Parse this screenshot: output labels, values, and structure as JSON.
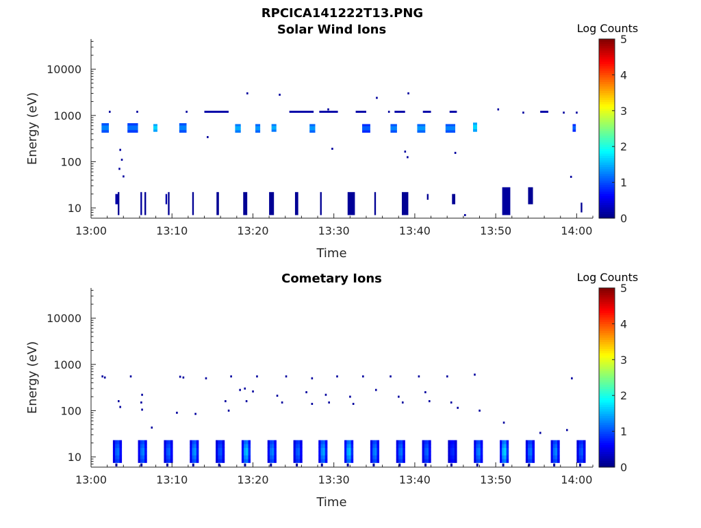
{
  "figure": {
    "title": "RPCICA141222T13.PNG"
  },
  "chart_data": [
    {
      "type": "heatmap",
      "title": "Solar Wind Ions",
      "xlabel": "Time",
      "ylabel": "Energy (eV)",
      "x_ticks": [
        "13:00",
        "13:10",
        "13:20",
        "13:30",
        "13:40",
        "13:50",
        "14:00"
      ],
      "x_range_minutes": [
        0,
        62
      ],
      "y_scale": "log",
      "y_ticks": [
        "10",
        "100",
        "1000",
        "10000"
      ],
      "y_range": [
        6,
        45000
      ],
      "grid": false,
      "colorbar": {
        "label": "Log Counts",
        "ticks": [
          "0",
          "1",
          "2",
          "3",
          "4",
          "5"
        ],
        "range": [
          0,
          5
        ],
        "colormap": "jet"
      },
      "patches": [
        {
          "t": [
            1.3,
            2.2
          ],
          "e": [
            430,
            680
          ],
          "v": 1.4
        },
        {
          "t": [
            4.5,
            5.8
          ],
          "e": [
            430,
            680
          ],
          "v": 1.3
        },
        {
          "t": [
            7.7,
            8.2
          ],
          "e": [
            450,
            650
          ],
          "v": 1.8
        },
        {
          "t": [
            10.9,
            11.8
          ],
          "e": [
            430,
            680
          ],
          "v": 1.4
        },
        {
          "t": [
            17.8,
            18.5
          ],
          "e": [
            430,
            650
          ],
          "v": 1.6
        },
        {
          "t": [
            20.3,
            20.9
          ],
          "e": [
            430,
            650
          ],
          "v": 1.5
        },
        {
          "t": [
            22.3,
            22.9
          ],
          "e": [
            450,
            650
          ],
          "v": 1.6
        },
        {
          "t": [
            27.0,
            27.7
          ],
          "e": [
            430,
            650
          ],
          "v": 1.5
        },
        {
          "t": [
            33.5,
            34.5
          ],
          "e": [
            430,
            650
          ],
          "v": 1.2
        },
        {
          "t": [
            37.0,
            37.8
          ],
          "e": [
            430,
            650
          ],
          "v": 1.4
        },
        {
          "t": [
            40.3,
            41.3
          ],
          "e": [
            430,
            650
          ],
          "v": 1.5
        },
        {
          "t": [
            43.8,
            45.0
          ],
          "e": [
            430,
            650
          ],
          "v": 1.4
        },
        {
          "t": [
            47.2,
            47.7
          ],
          "e": [
            450,
            700
          ],
          "v": 1.8
        },
        {
          "t": [
            59.5,
            59.9
          ],
          "e": [
            450,
            650
          ],
          "v": 1.2
        },
        {
          "t": [
            3.0,
            3.3
          ],
          "e": [
            12,
            20
          ],
          "v": 0.2
        },
        {
          "t": [
            3.3,
            3.5
          ],
          "e": [
            7,
            22
          ],
          "v": 0.1
        },
        {
          "t": [
            6.1,
            6.3
          ],
          "e": [
            7,
            22
          ],
          "v": 0.15
        },
        {
          "t": [
            6.6,
            6.8
          ],
          "e": [
            7,
            22
          ],
          "v": 0.1
        },
        {
          "t": [
            9.2,
            9.4
          ],
          "e": [
            12,
            20
          ],
          "v": 0.2
        },
        {
          "t": [
            9.5,
            9.7
          ],
          "e": [
            7,
            22
          ],
          "v": 0.1
        },
        {
          "t": [
            12.5,
            12.7
          ],
          "e": [
            7,
            22
          ],
          "v": 0.1
        },
        {
          "t": [
            15.5,
            15.8
          ],
          "e": [
            7,
            22
          ],
          "v": 0.1
        },
        {
          "t": [
            18.8,
            19.3
          ],
          "e": [
            7,
            22
          ],
          "v": 0.1
        },
        {
          "t": [
            22.0,
            22.6
          ],
          "e": [
            7,
            22
          ],
          "v": 0.1
        },
        {
          "t": [
            25.2,
            25.6
          ],
          "e": [
            7,
            22
          ],
          "v": 0.1
        },
        {
          "t": [
            28.3,
            28.5
          ],
          "e": [
            7,
            22
          ],
          "v": 0.1
        },
        {
          "t": [
            31.7,
            32.6
          ],
          "e": [
            7,
            22
          ],
          "v": 0.12
        },
        {
          "t": [
            35.0,
            35.2
          ],
          "e": [
            7,
            22
          ],
          "v": 0.1
        },
        {
          "t": [
            38.4,
            39.2
          ],
          "e": [
            7,
            22
          ],
          "v": 0.1
        },
        {
          "t": [
            41.5,
            41.7
          ],
          "e": [
            15,
            20
          ],
          "v": 0.1
        },
        {
          "t": [
            44.6,
            45.0
          ],
          "e": [
            12,
            20
          ],
          "v": 0.1
        },
        {
          "t": [
            50.8,
            51.8
          ],
          "e": [
            7,
            28
          ],
          "v": 0.15
        },
        {
          "t": [
            54.0,
            54.6
          ],
          "e": [
            12,
            28
          ],
          "v": 0.1
        },
        {
          "t": [
            60.5,
            60.7
          ],
          "e": [
            8,
            13
          ],
          "v": 0.1
        }
      ],
      "dots": [
        [
          2.3,
          1200
        ],
        [
          5.7,
          1200
        ],
        [
          11.8,
          1200
        ],
        [
          19.3,
          3000
        ],
        [
          23.3,
          2800
        ],
        [
          35.3,
          2400
        ],
        [
          39.2,
          3000
        ],
        [
          29.3,
          1350
        ],
        [
          36.8,
          1200
        ],
        [
          50.3,
          1350
        ],
        [
          53.4,
          1150
        ],
        [
          58.4,
          1150
        ],
        [
          60.0,
          1150
        ],
        [
          3.6,
          180
        ],
        [
          3.8,
          110
        ],
        [
          4.0,
          48
        ],
        [
          14.4,
          340
        ],
        [
          29.8,
          190
        ],
        [
          38.8,
          165
        ],
        [
          39.1,
          125
        ],
        [
          45.0,
          155
        ],
        [
          59.3,
          47
        ],
        [
          46.2,
          7
        ],
        [
          3.5,
          70
        ]
      ],
      "pixel_strings": [
        [
          [
            14.0,
            17.0
          ],
          1200
        ],
        [
          [
            24.5,
            27.5
          ],
          1200
        ],
        [
          [
            28.2,
            30.5
          ],
          1200
        ],
        [
          [
            32.7,
            34.0
          ],
          1200
        ],
        [
          [
            37.5,
            38.8
          ],
          1200
        ],
        [
          [
            41.0,
            42.0
          ],
          1200
        ],
        [
          [
            44.3,
            45.2
          ],
          1200
        ],
        [
          [
            55.5,
            56.5
          ],
          1200
        ]
      ]
    },
    {
      "type": "heatmap",
      "title": "Cometary Ions",
      "xlabel": "Time",
      "ylabel": "Energy (eV)",
      "x_ticks": [
        "13:00",
        "13:10",
        "13:20",
        "13:30",
        "13:40",
        "13:50",
        "14:00"
      ],
      "x_range_minutes": [
        0,
        62
      ],
      "y_scale": "log",
      "y_ticks": [
        "10",
        "100",
        "1000",
        "10000"
      ],
      "y_range": [
        6,
        45000
      ],
      "grid": false,
      "colorbar": {
        "label": "Log Counts",
        "ticks": [
          "0",
          "1",
          "2",
          "3",
          "4",
          "5"
        ],
        "range": [
          0,
          5
        ],
        "colormap": "jet"
      },
      "column_blocks_start_minutes": [
        2.7,
        5.8,
        9.0,
        12.2,
        15.4,
        18.6,
        21.8,
        25.0,
        28.1,
        31.3,
        34.5,
        37.7,
        40.9,
        44.1,
        47.3,
        50.5,
        53.7,
        56.8,
        60.0
      ],
      "column_block_peak_log_counts": [
        1.5,
        1.6,
        1.4,
        1.7,
        1.3,
        2.0,
        1.6,
        1.4,
        1.8,
        2.0,
        1.6,
        1.5,
        1.4,
        1.0,
        1.6,
        2.1,
        1.5,
        1.6,
        1.3
      ],
      "dots": [
        [
          1.4,
          550
        ],
        [
          1.7,
          520
        ],
        [
          4.9,
          550
        ],
        [
          11.0,
          540
        ],
        [
          11.4,
          520
        ],
        [
          14.2,
          500
        ],
        [
          17.3,
          550
        ],
        [
          19.0,
          300
        ],
        [
          20.5,
          550
        ],
        [
          24.1,
          550
        ],
        [
          27.3,
          500
        ],
        [
          30.4,
          550
        ],
        [
          33.6,
          550
        ],
        [
          37.0,
          550
        ],
        [
          40.5,
          550
        ],
        [
          44.0,
          550
        ],
        [
          47.4,
          600
        ],
        [
          59.4,
          500
        ],
        [
          3.4,
          160
        ],
        [
          3.6,
          120
        ],
        [
          6.3,
          220
        ],
        [
          6.2,
          150
        ],
        [
          6.3,
          105
        ],
        [
          7.5,
          43
        ],
        [
          10.6,
          90
        ],
        [
          12.9,
          85
        ],
        [
          16.6,
          160
        ],
        [
          17.0,
          100
        ],
        [
          18.4,
          280
        ],
        [
          19.2,
          160
        ],
        [
          20.0,
          260
        ],
        [
          23.0,
          210
        ],
        [
          23.6,
          150
        ],
        [
          26.6,
          250
        ],
        [
          27.3,
          140
        ],
        [
          29.0,
          220
        ],
        [
          29.4,
          150
        ],
        [
          32.0,
          200
        ],
        [
          32.4,
          140
        ],
        [
          35.2,
          280
        ],
        [
          38.0,
          200
        ],
        [
          38.5,
          150
        ],
        [
          41.3,
          250
        ],
        [
          41.8,
          160
        ],
        [
          44.5,
          150
        ],
        [
          45.3,
          115
        ],
        [
          48.0,
          100
        ],
        [
          51.0,
          55
        ],
        [
          55.5,
          33
        ],
        [
          58.8,
          38
        ]
      ]
    }
  ]
}
